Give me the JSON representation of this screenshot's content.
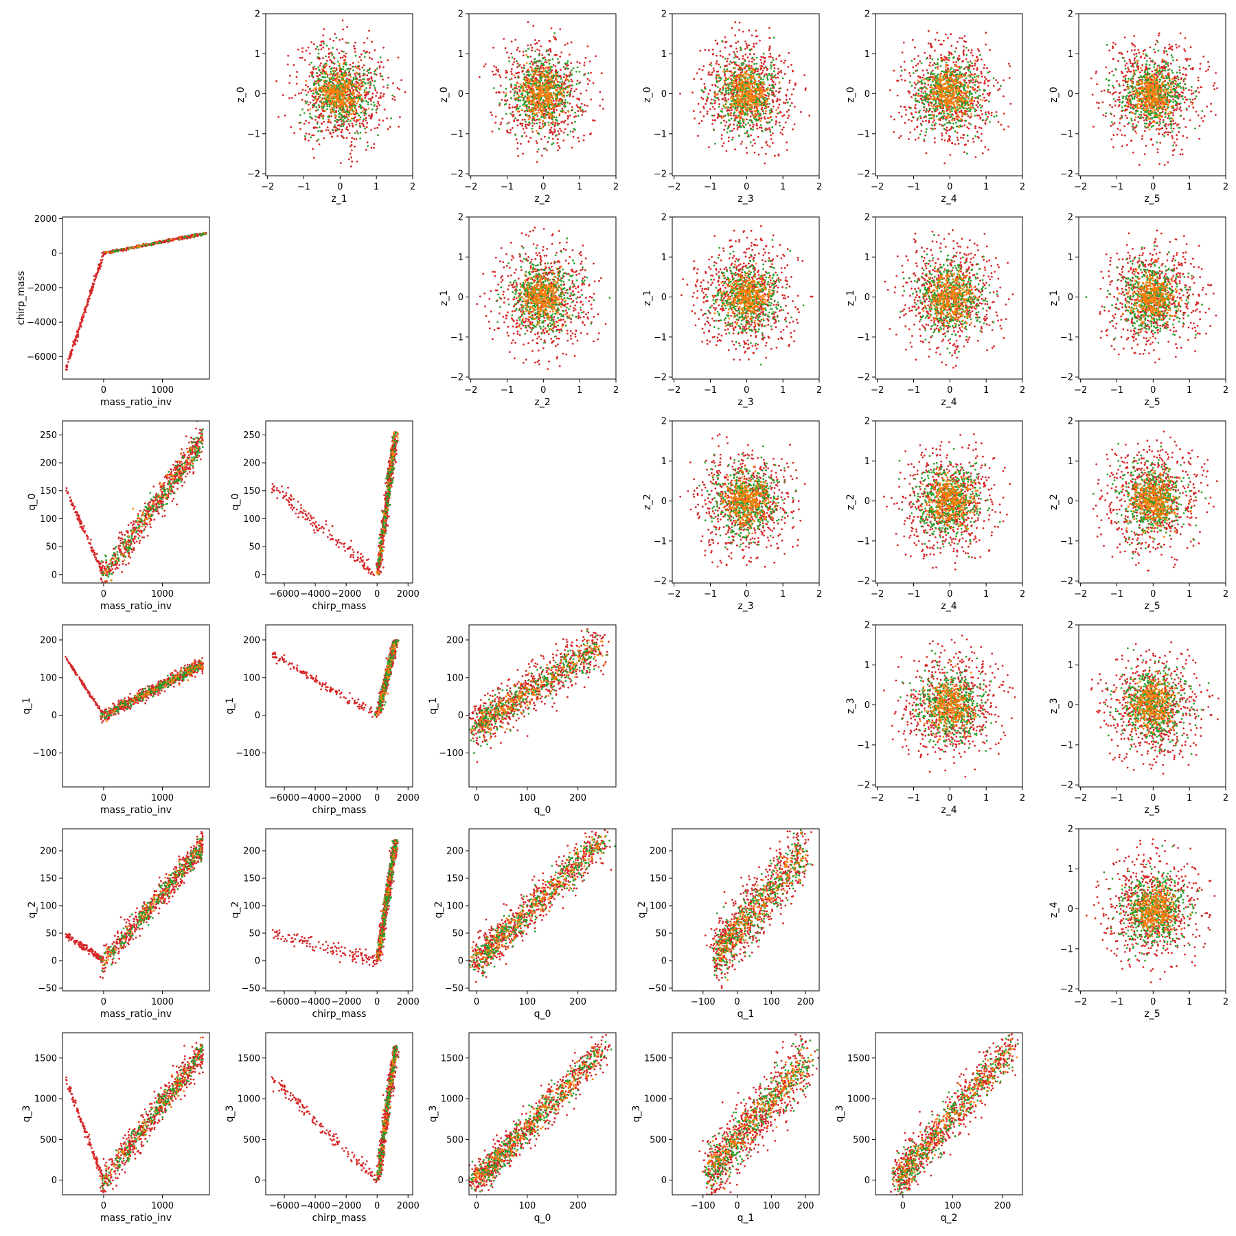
{
  "figure": {
    "width": 1800,
    "height": 1800
  },
  "chart_data": {
    "type": "scatter",
    "layout": "pair-plot lower and upper triangle, 6x6 grid, diagonal empty",
    "colors": {
      "series_a": "#d62728",
      "series_b": "#2ca02c",
      "series_c": "#ff7f0e"
    },
    "variables": {
      "mass_ratio_inv": {
        "range": [
          -700,
          1800
        ],
        "ticks": [
          0,
          1000
        ],
        "labels": [
          "0",
          "1000"
        ]
      },
      "chirp_mass": {
        "range": [
          -7200,
          2300
        ],
        "ticks": [
          -6000,
          -4000,
          -2000,
          0,
          2000
        ],
        "labels": [
          "−6000",
          "−4000",
          "−2000",
          "0",
          "2000"
        ]
      },
      "chirp_mass_y": {
        "range": [
          -7300,
          2100
        ],
        "ticks": [
          -6000,
          -4000,
          -2000,
          0,
          2000
        ],
        "labels": [
          "−6000",
          "−4000",
          "−2000",
          "0",
          "2000"
        ]
      },
      "q_0": {
        "range": [
          -15,
          275
        ],
        "ticks": [
          0,
          50,
          100,
          150,
          200,
          250
        ],
        "labels": [
          "0",
          "50",
          "100",
          "150",
          "200",
          "250"
        ],
        "xticks": [
          0,
          100,
          200
        ],
        "xlabels": [
          "0",
          "100",
          "200"
        ]
      },
      "q_1": {
        "range": [
          -190,
          240
        ],
        "ticks": [
          -100,
          0,
          100,
          200
        ],
        "labels": [
          "−100",
          "0",
          "100",
          "200"
        ]
      },
      "q_2": {
        "range": [
          -55,
          240
        ],
        "ticks": [
          -50,
          0,
          50,
          100,
          150,
          200
        ],
        "labels": [
          "−50",
          "0",
          "50",
          "100",
          "150",
          "200"
        ],
        "xticks": [
          0,
          100,
          200
        ],
        "xlabels": [
          "0",
          "100",
          "200"
        ]
      },
      "q_3": {
        "range": [
          -180,
          1810
        ],
        "ticks": [
          0,
          500,
          1000,
          1500
        ],
        "labels": [
          "0",
          "500",
          "1000",
          "1500"
        ]
      },
      "z": {
        "range": [
          -2.05,
          2.0
        ],
        "ticks": [
          -2,
          -1,
          0,
          1,
          2
        ],
        "labels": [
          "−2",
          "−1",
          "0",
          "1",
          "2"
        ]
      }
    },
    "panels": [
      {
        "row": 0,
        "col": 1,
        "x": "z_1",
        "y": "z_0",
        "relation": "gaussian"
      },
      {
        "row": 0,
        "col": 2,
        "x": "z_2",
        "y": "z_0",
        "relation": "gaussian"
      },
      {
        "row": 0,
        "col": 3,
        "x": "z_3",
        "y": "z_0",
        "relation": "gaussian"
      },
      {
        "row": 0,
        "col": 4,
        "x": "z_4",
        "y": "z_0",
        "relation": "gaussian"
      },
      {
        "row": 0,
        "col": 5,
        "x": "z_5",
        "y": "z_0",
        "relation": "gaussian"
      },
      {
        "row": 1,
        "col": 0,
        "x": "mass_ratio_inv",
        "y": "chirp_mass",
        "relation": "mr_cm"
      },
      {
        "row": 1,
        "col": 2,
        "x": "z_2",
        "y": "z_1",
        "relation": "gaussian"
      },
      {
        "row": 1,
        "col": 3,
        "x": "z_3",
        "y": "z_1",
        "relation": "gaussian"
      },
      {
        "row": 1,
        "col": 4,
        "x": "z_4",
        "y": "z_1",
        "relation": "gaussian"
      },
      {
        "row": 1,
        "col": 5,
        "x": "z_5",
        "y": "z_1",
        "relation": "gaussian"
      },
      {
        "row": 2,
        "col": 0,
        "x": "mass_ratio_inv",
        "y": "q_0",
        "relation": "v_mr"
      },
      {
        "row": 2,
        "col": 1,
        "x": "chirp_mass",
        "y": "q_0",
        "relation": "v_cm"
      },
      {
        "row": 2,
        "col": 3,
        "x": "z_3",
        "y": "z_2",
        "relation": "gaussian"
      },
      {
        "row": 2,
        "col": 4,
        "x": "z_4",
        "y": "z_2",
        "relation": "gaussian"
      },
      {
        "row": 2,
        "col": 5,
        "x": "z_5",
        "y": "z_2",
        "relation": "gaussian"
      },
      {
        "row": 3,
        "col": 0,
        "x": "mass_ratio_inv",
        "y": "q_1",
        "relation": "v_mr"
      },
      {
        "row": 3,
        "col": 1,
        "x": "chirp_mass",
        "y": "q_1",
        "relation": "v_cm"
      },
      {
        "row": 3,
        "col": 2,
        "x": "q_0",
        "y": "q_1",
        "relation": "corr"
      },
      {
        "row": 3,
        "col": 4,
        "x": "z_4",
        "y": "z_3",
        "relation": "gaussian"
      },
      {
        "row": 3,
        "col": 5,
        "x": "z_5",
        "y": "z_3",
        "relation": "gaussian"
      },
      {
        "row": 4,
        "col": 0,
        "x": "mass_ratio_inv",
        "y": "q_2",
        "relation": "v_mr"
      },
      {
        "row": 4,
        "col": 1,
        "x": "chirp_mass",
        "y": "q_2",
        "relation": "v_cm"
      },
      {
        "row": 4,
        "col": 2,
        "x": "q_0",
        "y": "q_2",
        "relation": "corr"
      },
      {
        "row": 4,
        "col": 3,
        "x": "q_1",
        "y": "q_2",
        "relation": "corr"
      },
      {
        "row": 4,
        "col": 5,
        "x": "z_5",
        "y": "z_4",
        "relation": "gaussian"
      },
      {
        "row": 5,
        "col": 0,
        "x": "mass_ratio_inv",
        "y": "q_3",
        "relation": "v_mr"
      },
      {
        "row": 5,
        "col": 1,
        "x": "chirp_mass",
        "y": "q_3",
        "relation": "v_cm"
      },
      {
        "row": 5,
        "col": 2,
        "x": "q_0",
        "y": "q_3",
        "relation": "corr"
      },
      {
        "row": 5,
        "col": 3,
        "x": "q_1",
        "y": "q_3",
        "relation": "corr"
      },
      {
        "row": 5,
        "col": 4,
        "x": "q_2",
        "y": "q_3",
        "relation": "corr"
      }
    ]
  }
}
